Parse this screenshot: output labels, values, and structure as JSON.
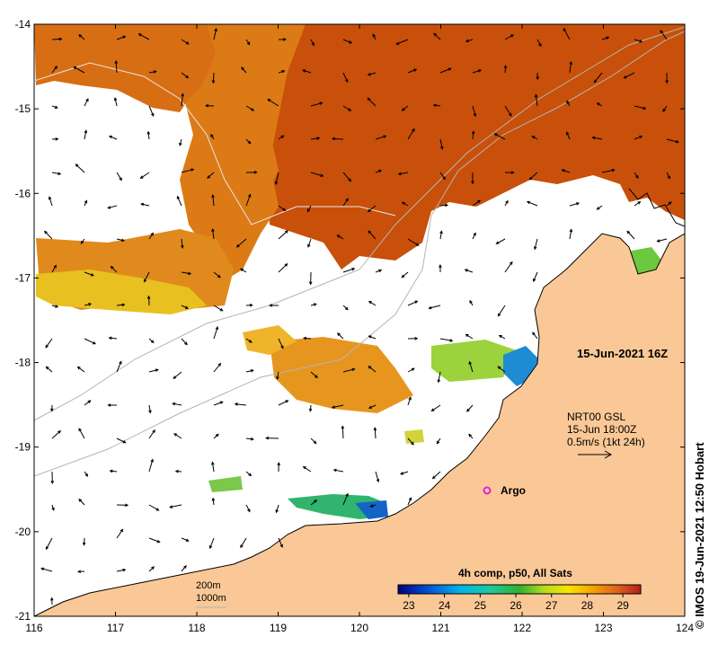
{
  "map": {
    "lon_ticks": [
      "116",
      "117",
      "118",
      "119",
      "120",
      "121",
      "122",
      "123",
      "124"
    ],
    "lat_ticks": [
      "-14",
      "-15",
      "-16",
      "-17",
      "-18",
      "-19",
      "-20",
      "-21"
    ],
    "extent": {
      "lon": [
        116,
        124
      ],
      "lat": [
        -21,
        -14
      ]
    },
    "date_label": "15-Jun-2021 16Z",
    "current_legend": {
      "line1": "NRT00 GSL",
      "line2": "15-Jun 18:00Z",
      "line3": "0.5m/s (1kt 24h)"
    },
    "float_label": "Argo",
    "depth_legend": {
      "line1": "200m",
      "line2": "1000m"
    },
    "colorbar": {
      "title": "4h comp, p50, All Sats",
      "ticks": [
        "23",
        "24",
        "25",
        "26",
        "27",
        "28",
        "29"
      ],
      "range": [
        22.7,
        29.5
      ]
    },
    "credit": "© IMOS 19-Jun-2021 12:50 Hobart",
    "colors": {
      "land": "#fac896",
      "ocean_warm": "#c8500a",
      "ocean_mid": "#e08a1e",
      "float_marker": "#e020e0"
    }
  }
}
